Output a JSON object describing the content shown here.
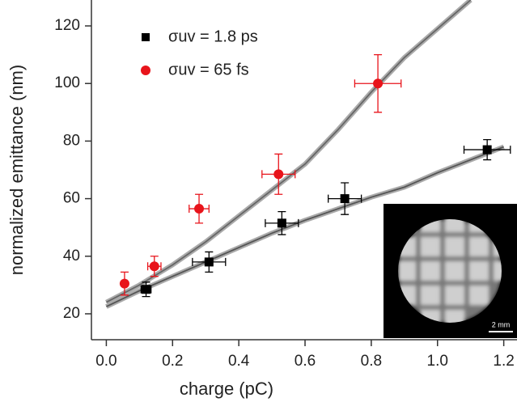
{
  "chart_data": {
    "type": "scatter",
    "x_label": "charge (pC)",
    "y_label": "normalized emittance (nm)",
    "xlim": [
      -0.045,
      1.24
    ],
    "ylim": [
      11,
      129
    ],
    "xticks": [
      {
        "value": 0,
        "label": "0.0"
      },
      0.2,
      0.4,
      0.6,
      0.8,
      {
        "value": 1,
        "label": "1.0"
      },
      1.2
    ],
    "yticks": [
      20,
      40,
      60,
      80,
      100,
      120
    ],
    "series": [
      {
        "name": "σuv = 1.8 ps",
        "type": "scatter",
        "marker": "square",
        "color": "#000000",
        "x": [
          0.12,
          0.31,
          0.53,
          0.72,
          1.15
        ],
        "values": [
          28.5,
          38,
          51.5,
          60,
          77
        ],
        "xerr": [
          0.015,
          0.05,
          0.05,
          0.05,
          0.07
        ],
        "yerr": [
          2.5,
          3.5,
          4,
          5.5,
          3.5
        ]
      },
      {
        "name": "σuv = 65 fs",
        "type": "scatter",
        "marker": "circle",
        "color": "#e8141b",
        "x": [
          0.055,
          0.145,
          0.28,
          0.52,
          0.82
        ],
        "values": [
          30.5,
          36.5,
          56.5,
          68.5,
          100
        ],
        "xerr": [
          null,
          0.02,
          0.03,
          0.05,
          0.07
        ],
        "yerr": [
          4,
          3.5,
          5,
          7,
          10
        ]
      },
      {
        "type": "line",
        "color": "#555555",
        "x": [
          0,
          0.1,
          0.2,
          0.3,
          0.4,
          0.5,
          0.6,
          0.7,
          0.8,
          0.9,
          1.0,
          1.1,
          1.2
        ],
        "values": [
          22.5,
          28,
          33,
          38,
          43,
          48,
          52.5,
          56.5,
          60.5,
          64,
          69,
          73.5,
          78
        ]
      },
      {
        "type": "line",
        "color": "#666666",
        "x": [
          0,
          0.1,
          0.2,
          0.3,
          0.4,
          0.5,
          0.6,
          0.7,
          0.8,
          0.9,
          1.0,
          1.1
        ],
        "values": [
          24,
          30,
          37,
          45,
          54,
          63,
          72,
          84,
          97,
          109,
          119,
          129
        ]
      }
    ],
    "inset": {
      "scale_label": "2 mm"
    }
  }
}
